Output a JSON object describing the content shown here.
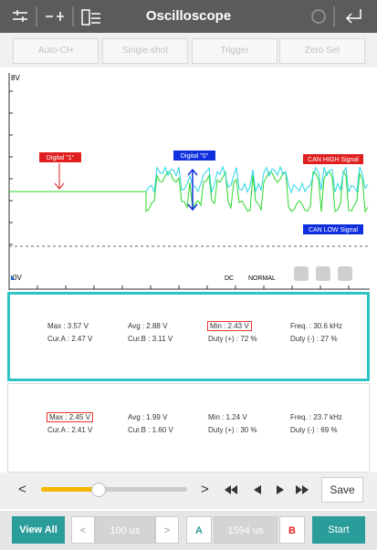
{
  "header": {
    "title": "Oscilloscope"
  },
  "buttons": [
    "Auto-CH",
    "Single-shot",
    "Trigger",
    "Zero Set"
  ],
  "scope": {
    "top_label": "8V",
    "bottom_label": "0V",
    "annotations": {
      "digital_one": "Digital \"1\"",
      "digital_zero": "Digital \"0\"",
      "can_high": "CAN HIGH Signal",
      "can_low": "CAN LOW Signal"
    },
    "coupling": "DC",
    "mode": "NORMAL"
  },
  "panels": [
    {
      "rows": [
        [
          "Max : 3.57 V",
          "Avg : 2.88 V",
          "Min : 2.43 V",
          "Freq. : 30.6 kHz"
        ],
        [
          "Cur.A : 2.47 V",
          "Cur.B : 3.11 V",
          "Duty (+) : 72 %",
          "Duty (-) : 27 %"
        ]
      ],
      "highlight": [
        0,
        2
      ],
      "selected": true
    },
    {
      "rows": [
        [
          "Max : 2.45 V",
          "Avg : 1.99 V",
          "Min : 1.24 V",
          "Freq. : 23.7 kHz"
        ],
        [
          "Cur.A : 2.41 V",
          "Cur.B : 1.60 V",
          "Duty (+) : 30 %",
          "Duty (-) : 69 %"
        ]
      ],
      "highlight": [
        0,
        0
      ],
      "selected": false
    }
  ],
  "controls": {
    "prev": "<",
    "next": ">",
    "save": "Save"
  },
  "footer": {
    "view_all": "View All",
    "left": "<",
    "time_div": "100 us",
    "right": ">",
    "cursor_a": "A",
    "cursor_value": "1594 us",
    "cursor_b": "B",
    "start": "Start"
  }
}
